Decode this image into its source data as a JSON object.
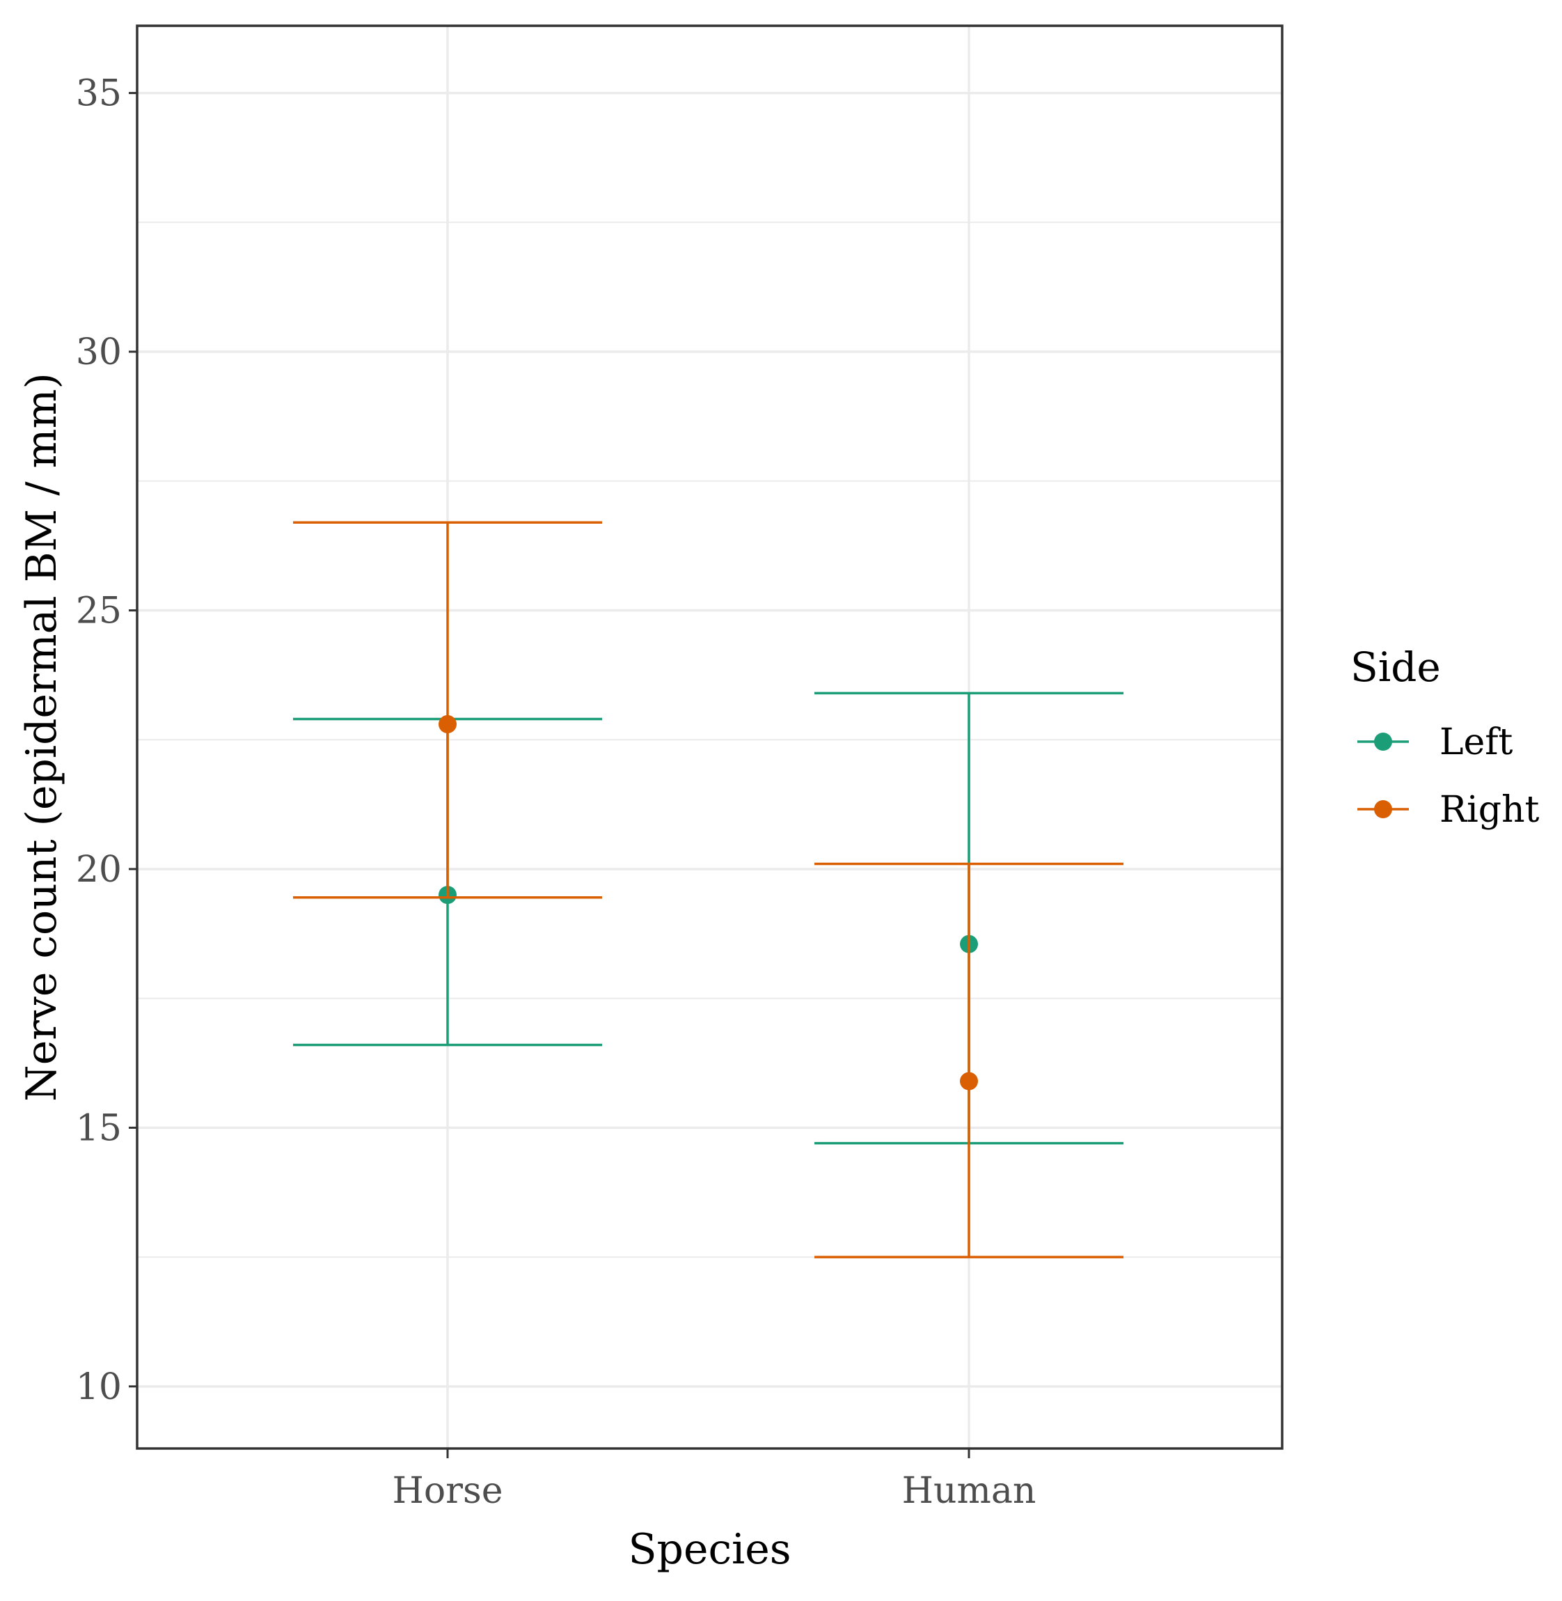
{
  "chart_data": {
    "type": "errorbar",
    "title": "",
    "xlabel": "Species",
    "ylabel": "Nerve count (epidermal BM / mm)",
    "categories": [
      "Horse",
      "Human"
    ],
    "ylim": [
      8.8,
      36.3
    ],
    "y_ticks": [
      10,
      15,
      20,
      25,
      30,
      35
    ],
    "y_tick_labels": [
      "10",
      "15",
      "20",
      "25",
      "30",
      "35"
    ],
    "grid": true,
    "legend": {
      "title": "Side",
      "position": "right"
    },
    "series": [
      {
        "name": "Left",
        "color": "#1b9e77",
        "mean": [
          19.5,
          18.55
        ],
        "lower": [
          16.6,
          14.7
        ],
        "upper": [
          22.9,
          23.4
        ]
      },
      {
        "name": "Right",
        "color": "#d95f02",
        "mean": [
          22.8,
          15.9
        ],
        "lower": [
          19.45,
          12.5
        ],
        "upper": [
          26.7,
          20.1
        ]
      }
    ]
  }
}
